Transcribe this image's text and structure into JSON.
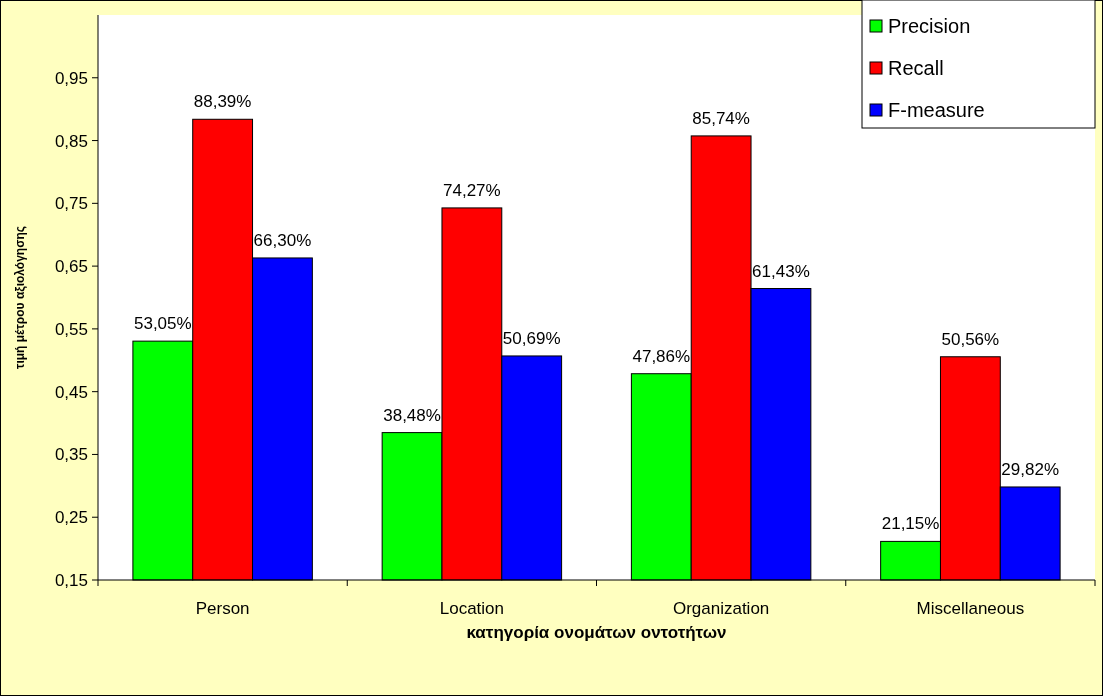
{
  "chart_data": {
    "type": "bar",
    "xlabel": "κατηγορία ονομάτων οντοτήτων",
    "ylabel": "τιμή μέτρου αξιολόγησης",
    "categories": [
      "Person",
      "Location",
      "Organization",
      "Miscellaneous"
    ],
    "series": [
      {
        "name": "Precision",
        "color": "#00ff00",
        "values": [
          0.5305,
          0.3848,
          0.4786,
          0.2115
        ],
        "value_labels": [
          "53,05%",
          "38,48%",
          "47,86%",
          "21,15%"
        ]
      },
      {
        "name": "Recall",
        "color": "#ff0000",
        "values": [
          0.8839,
          0.7427,
          0.8574,
          0.5056
        ],
        "value_labels": [
          "88,39%",
          "74,27%",
          "85,74%",
          "50,56%"
        ]
      },
      {
        "name": "F-measure",
        "color": "#0000ff",
        "values": [
          0.663,
          0.5069,
          0.6143,
          0.2982
        ],
        "value_labels": [
          "66,30%",
          "50,69%",
          "61,43%",
          "29,82%"
        ]
      }
    ],
    "ylim": [
      0.15,
      1.05
    ],
    "yticks": [
      {
        "value": 0.15,
        "label": "0,15"
      },
      {
        "value": 0.25,
        "label": "0,25"
      },
      {
        "value": 0.35,
        "label": "0,35"
      },
      {
        "value": 0.45,
        "label": "0,45"
      },
      {
        "value": 0.55,
        "label": "0,55"
      },
      {
        "value": 0.65,
        "label": "0,65"
      },
      {
        "value": 0.75,
        "label": "0,75"
      },
      {
        "value": 0.85,
        "label": "0,85"
      },
      {
        "value": 0.95,
        "label": "0,95"
      }
    ],
    "legend": "top right",
    "grid": false
  }
}
